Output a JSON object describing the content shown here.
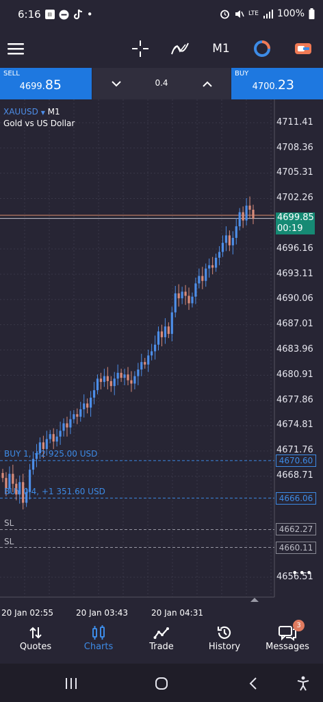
{
  "status_bar": {
    "time": "6:16",
    "dot": "•",
    "battery_percent": "100%",
    "network": "LTE",
    "icons": [
      "news-icon",
      "minus-circle-icon",
      "tiktok-icon",
      "alarm-icon",
      "mute-icon",
      "signal-icon",
      "battery-icon"
    ]
  },
  "toolbar": {
    "timeframe": "M1",
    "icons": [
      "menu-icon",
      "crosshair-icon",
      "indicators-icon",
      "timeframe-label",
      "one-click-icon",
      "account-icon"
    ]
  },
  "trade_bar": {
    "sell_label": "SELL",
    "sell_price_main": "4699.",
    "sell_price_big": "85",
    "buy_label": "BUY",
    "buy_price_main": "4700.",
    "buy_price_big": "23",
    "lot": "0.4"
  },
  "chart": {
    "symbol": "XAUUSD",
    "symbol_arrow": "▼",
    "timeframe": "M1",
    "description": "Gold vs US Dollar",
    "price_labels": [
      "4711.41",
      "4708.36",
      "4705.31",
      "4702.26",
      "4696.16",
      "4693.11",
      "4690.06",
      "4687.01",
      "4683.96",
      "4680.91",
      "4677.86",
      "4674.81",
      "4671.76",
      "4668.71",
      "4656.51"
    ],
    "current_price": "4699.85",
    "countdown": "00:19",
    "positions": [
      {
        "label": "BUY 1,  +2 925.00 USD",
        "price": "4670.60"
      },
      {
        "label": "BUY 0.4,  +1 351.60 USD",
        "price": "4666.06"
      }
    ],
    "stop_losses": [
      {
        "label": "SL",
        "price": "4662.27"
      },
      {
        "label": "SL",
        "price": "4660.11"
      }
    ],
    "time_labels": [
      "20 Jan 02:55",
      "20 Jan 03:43",
      "20 Jan 04:31"
    ],
    "more": "•••"
  },
  "chart_data": {
    "type": "candlestick",
    "title": "XAUUSD, M1",
    "subtitle": "Gold vs US Dollar",
    "ylim": [
      4654.0,
      4714.0
    ],
    "x_ticks": [
      "20 Jan 02:55",
      "20 Jan 03:43",
      "20 Jan 04:31"
    ],
    "bid": 4699.85,
    "ask": 4700.23,
    "levels": [
      4670.6,
      4666.06,
      4662.27,
      4660.11
    ],
    "close_path": [
      4668.5,
      4667.2,
      4669.0,
      4667.8,
      4666.5,
      4668.0,
      4665.5,
      4666.8,
      4669.5,
      4670.8,
      4671.5,
      4672.8,
      4672.0,
      4673.2,
      4673.8,
      4672.9,
      4673.5,
      4674.2,
      4675.1,
      4674.6,
      4675.6,
      4676.2,
      4675.9,
      4676.8,
      4677.5,
      4677.0,
      4678.2,
      4679.1,
      4680.5,
      4680.1,
      4680.8,
      4680.2,
      4679.6,
      4680.5,
      4681.2,
      4680.6,
      4681.0,
      4680.3,
      4679.9,
      4680.8,
      4681.6,
      4682.5,
      4682.2,
      4683.3,
      4683.8,
      4684.6,
      4686.2,
      4685.5,
      4686.8,
      4685.9,
      4688.5,
      4690.8,
      4690.2,
      4691.0,
      4690.5,
      4689.6,
      4690.4,
      4692.0,
      4692.9,
      4692.3,
      4693.8,
      4694.2,
      4693.9,
      4695.1,
      4695.8,
      4696.9,
      4697.8,
      4696.6,
      4697.5,
      4698.9,
      4700.6,
      4699.6,
      4701.4,
      4700.9,
      4699.85
    ]
  },
  "bottom_nav": {
    "items": [
      {
        "label": "Quotes",
        "icon": "quotes-icon"
      },
      {
        "label": "Charts",
        "icon": "charts-icon",
        "active": true
      },
      {
        "label": "Trade",
        "icon": "trade-icon"
      },
      {
        "label": "History",
        "icon": "history-icon"
      },
      {
        "label": "Messages",
        "icon": "messages-icon"
      }
    ],
    "messages_badge": "3"
  },
  "system_nav": [
    "recent-apps-icon",
    "home-icon",
    "back-icon",
    "accessibility-icon"
  ],
  "colors": {
    "background": "#272534",
    "accent_blue": "#1e78e0",
    "bull": "#4d8ee8",
    "bear": "#d98c7a",
    "current_price": "#168a74"
  }
}
